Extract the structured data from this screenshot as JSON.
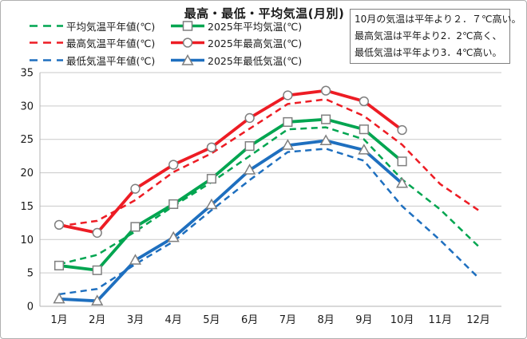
{
  "title": "最高・最低・平均気温(月別)",
  "annotation": {
    "lines": [
      "10月の気温は平年より２．７℃高い。",
      "最高気温は平年より2．2℃高く、",
      "最低気温は平年より3．4℃高い。"
    ]
  },
  "colors": {
    "average": "#00a550",
    "high": "#ed1c24",
    "low": "#1e6fbf",
    "grid": "#c9c9c9",
    "axis": "#b3b3b3",
    "marker_stroke": "#7f7f7f",
    "text": "#1a1a1a"
  },
  "chart_data": {
    "type": "line",
    "title": "最高・最低・平均気温(月別)",
    "xlabel": "",
    "ylabel": "",
    "ylim": [
      0,
      35
    ],
    "yticks": [
      0,
      5,
      10,
      15,
      20,
      25,
      30,
      35
    ],
    "grid": true,
    "legend_position": "top-left",
    "categories": [
      "1月",
      "2月",
      "3月",
      "4月",
      "5月",
      "6月",
      "7月",
      "8月",
      "9月",
      "10月",
      "11月",
      "12月"
    ],
    "series": [
      {
        "name": "平均気温平年値(℃)",
        "color_key": "average",
        "style": "dashed",
        "marker": "none",
        "values": [
          6.3,
          7.7,
          11.2,
          15.0,
          18.6,
          22.5,
          26.5,
          26.8,
          25.0,
          19.0,
          14.5,
          9.0
        ]
      },
      {
        "name": "最高気温平年値(℃)",
        "color_key": "high",
        "style": "dashed",
        "marker": "none",
        "values": [
          12.0,
          12.8,
          15.9,
          20.1,
          22.9,
          26.6,
          30.3,
          31.0,
          28.5,
          24.2,
          18.3,
          14.4
        ]
      },
      {
        "name": "最低気温平年値(℃)",
        "color_key": "low",
        "style": "dashed",
        "marker": "none",
        "values": [
          1.8,
          2.6,
          6.3,
          9.7,
          14.4,
          18.9,
          23.1,
          23.6,
          21.8,
          15.0,
          9.9,
          4.3
        ]
      },
      {
        "name": "2025年平均気温(℃)",
        "color_key": "average",
        "style": "solid",
        "marker": "square",
        "values": [
          6.1,
          5.4,
          11.9,
          15.3,
          19.1,
          24.0,
          27.6,
          28.0,
          26.5,
          21.7
        ]
      },
      {
        "name": "2025年最高気温(℃)",
        "color_key": "high",
        "style": "solid",
        "marker": "circle",
        "values": [
          12.2,
          11.0,
          17.6,
          21.2,
          23.8,
          28.2,
          31.6,
          32.3,
          30.7,
          26.4
        ]
      },
      {
        "name": "2025年最低気温(℃)",
        "color_key": "low",
        "style": "solid",
        "marker": "triangle",
        "values": [
          1.1,
          0.8,
          6.9,
          10.3,
          15.2,
          20.4,
          24.1,
          24.8,
          23.4,
          18.4
        ]
      }
    ]
  }
}
